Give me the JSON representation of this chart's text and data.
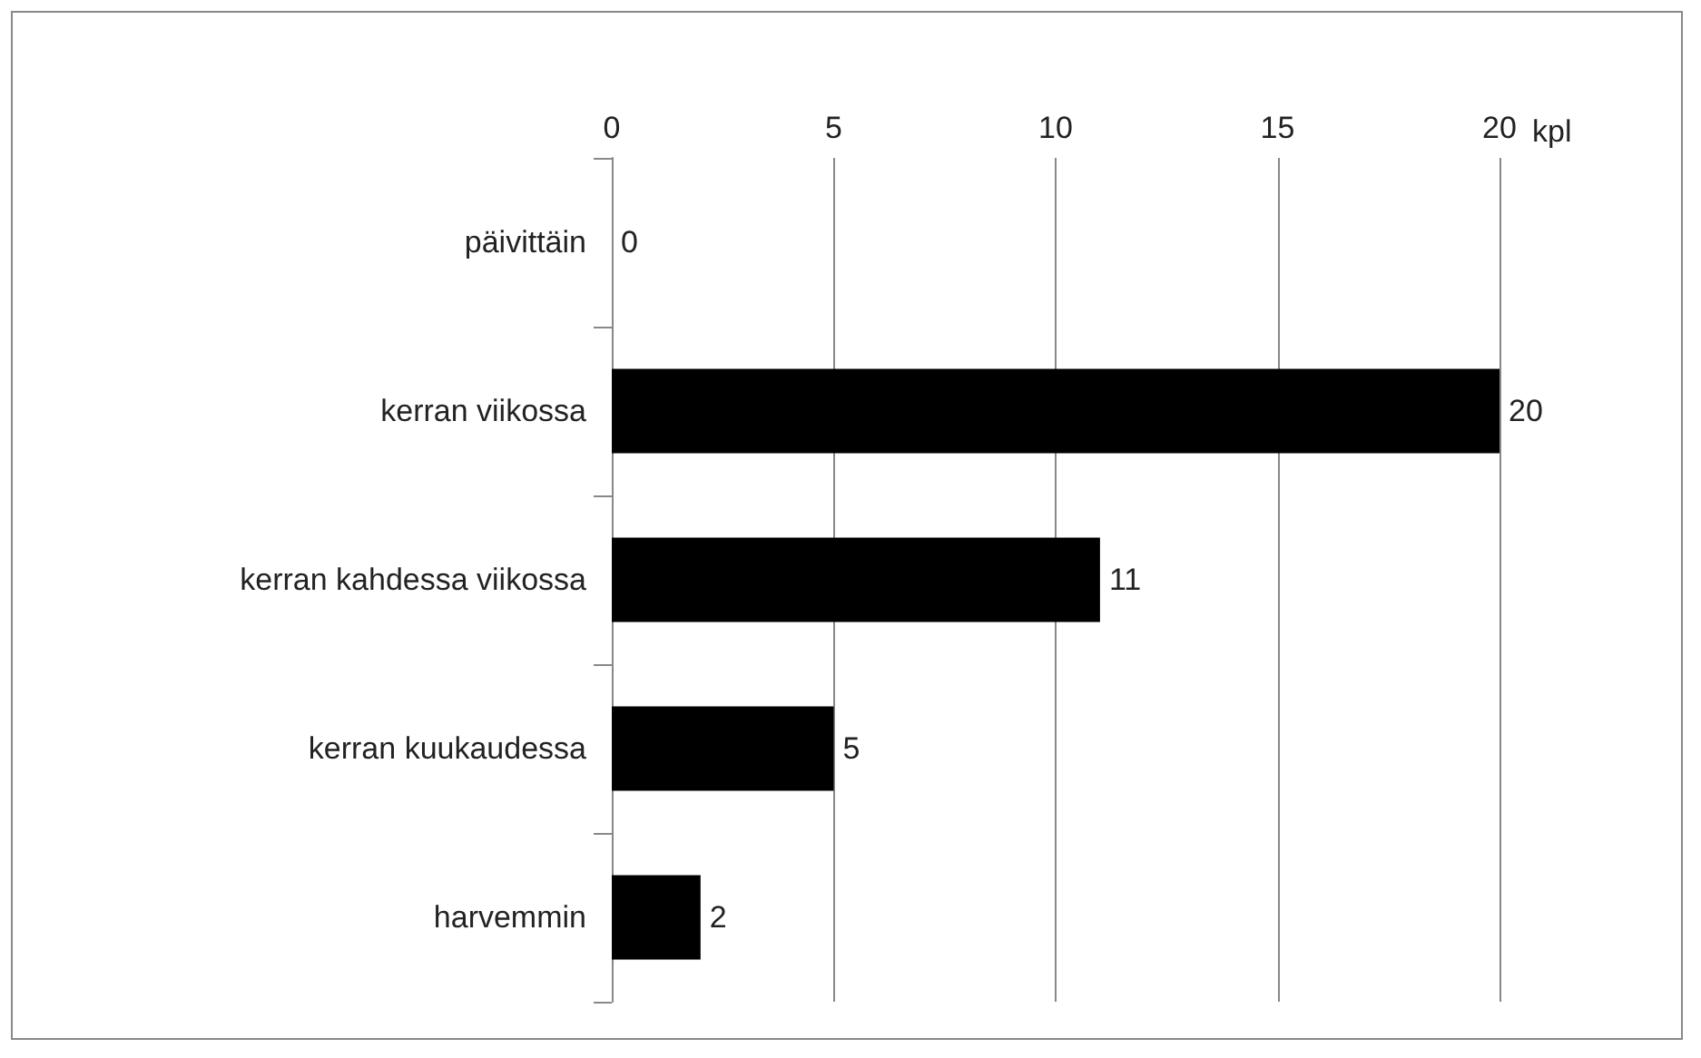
{
  "chart_data": {
    "type": "bar",
    "orientation": "horizontal",
    "xlabel": "kpl",
    "categories": [
      "päivittäin",
      "kerran viikossa",
      "kerran kahdessa viikossa",
      "kerran kuukaudessa",
      "harvemmin"
    ],
    "values": [
      0,
      20,
      11,
      5,
      2
    ],
    "color": "#000000",
    "xlim": [
      0,
      20
    ],
    "xticks": [
      0,
      5,
      10,
      15,
      20
    ],
    "grid": "x",
    "data_labels": true
  }
}
